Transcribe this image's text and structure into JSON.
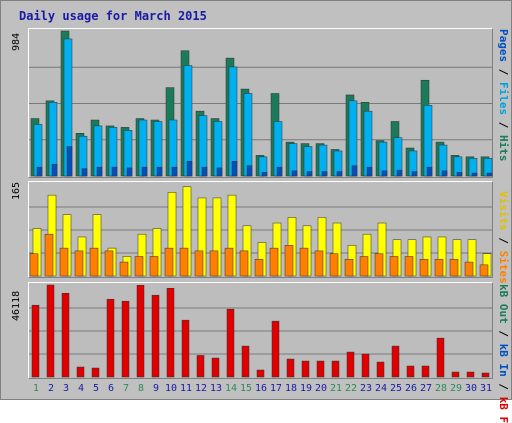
{
  "title": "Daily usage for March 2015",
  "colors": {
    "hits": "#1a7a5a",
    "files": "#00b0f0",
    "pages": "#0050c0",
    "visits": "#ffff00",
    "sites": "#ff8000",
    "kbin": "#e00000",
    "weekend": "#2e8b57",
    "weekday": "#1a1aa6"
  },
  "axis_labels": {
    "top_max": "984",
    "mid_max": "165",
    "bottom_max": "46118"
  },
  "right_labels": {
    "pages": "Pages",
    "files": "Files",
    "hits": "Hits",
    "visits": "Visits",
    "sites": "Sites",
    "kbout": "kB Out",
    "kbin": "kB In",
    "kbf": "kB F"
  },
  "separator": " / ",
  "chart_data": [
    {
      "type": "bar",
      "title": "Daily usage for March 2015",
      "categories": [
        "1",
        "2",
        "3",
        "4",
        "5",
        "6",
        "7",
        "8",
        "9",
        "10",
        "11",
        "12",
        "13",
        "14",
        "15",
        "16",
        "17",
        "18",
        "19",
        "20",
        "21",
        "22",
        "23",
        "24",
        "25",
        "26",
        "27",
        "28",
        "29",
        "30",
        "31"
      ],
      "weekend_days": [
        "1",
        "7",
        "8",
        "14",
        "15",
        "21",
        "22",
        "28",
        "29"
      ],
      "ylim": [
        0,
        984
      ],
      "series": [
        {
          "name": "Hits",
          "values": [
            390,
            510,
            984,
            290,
            380,
            340,
            330,
            390,
            380,
            600,
            850,
            440,
            390,
            800,
            590,
            140,
            560,
            230,
            220,
            220,
            180,
            550,
            500,
            240,
            370,
            190,
            650,
            230,
            140,
            130,
            130
          ]
        },
        {
          "name": "Files",
          "values": [
            350,
            500,
            930,
            270,
            340,
            330,
            310,
            380,
            370,
            380,
            750,
            410,
            370,
            740,
            560,
            130,
            370,
            220,
            200,
            210,
            170,
            510,
            440,
            230,
            260,
            170,
            480,
            210,
            130,
            120,
            120
          ]
        },
        {
          "name": "Pages",
          "values": [
            60,
            80,
            200,
            50,
            60,
            60,
            55,
            60,
            60,
            60,
            100,
            60,
            55,
            100,
            70,
            25,
            60,
            35,
            30,
            30,
            30,
            70,
            60,
            35,
            40,
            30,
            60,
            35,
            25,
            20,
            20
          ]
        }
      ]
    },
    {
      "type": "bar",
      "categories": [
        "1",
        "2",
        "3",
        "4",
        "5",
        "6",
        "7",
        "8",
        "9",
        "10",
        "11",
        "12",
        "13",
        "14",
        "15",
        "16",
        "17",
        "18",
        "19",
        "20",
        "21",
        "22",
        "23",
        "24",
        "25",
        "26",
        "27",
        "28",
        "29",
        "30",
        "31"
      ],
      "ylim": [
        0,
        165
      ],
      "series": [
        {
          "name": "Visits",
          "values": [
            85,
            145,
            110,
            70,
            110,
            50,
            35,
            75,
            85,
            150,
            160,
            140,
            140,
            145,
            90,
            60,
            95,
            105,
            90,
            105,
            95,
            55,
            75,
            95,
            65,
            65,
            70,
            70,
            65,
            65,
            40
          ]
        },
        {
          "name": "Sites",
          "values": [
            40,
            75,
            50,
            45,
            50,
            45,
            25,
            35,
            35,
            50,
            50,
            45,
            45,
            50,
            45,
            30,
            50,
            55,
            50,
            45,
            40,
            30,
            35,
            40,
            35,
            35,
            30,
            30,
            30,
            25,
            20
          ]
        }
      ]
    },
    {
      "type": "bar",
      "categories": [
        "1",
        "2",
        "3",
        "4",
        "5",
        "6",
        "7",
        "8",
        "9",
        "10",
        "11",
        "12",
        "13",
        "14",
        "15",
        "16",
        "17",
        "18",
        "19",
        "20",
        "21",
        "22",
        "23",
        "24",
        "25",
        "26",
        "27",
        "28",
        "29",
        "30",
        "31"
      ],
      "ylim": [
        0,
        46118
      ],
      "series": [
        {
          "name": "kB F",
          "values": [
            36000,
            46118,
            42000,
            5000,
            4500,
            39000,
            38000,
            46000,
            41000,
            44500,
            28500,
            10800,
            9500,
            34000,
            15500,
            3500,
            28000,
            9000,
            8000,
            8000,
            8000,
            12500,
            11500,
            7500,
            15500,
            5500,
            5500,
            19500,
            2500,
            2500,
            2000
          ]
        }
      ]
    }
  ]
}
